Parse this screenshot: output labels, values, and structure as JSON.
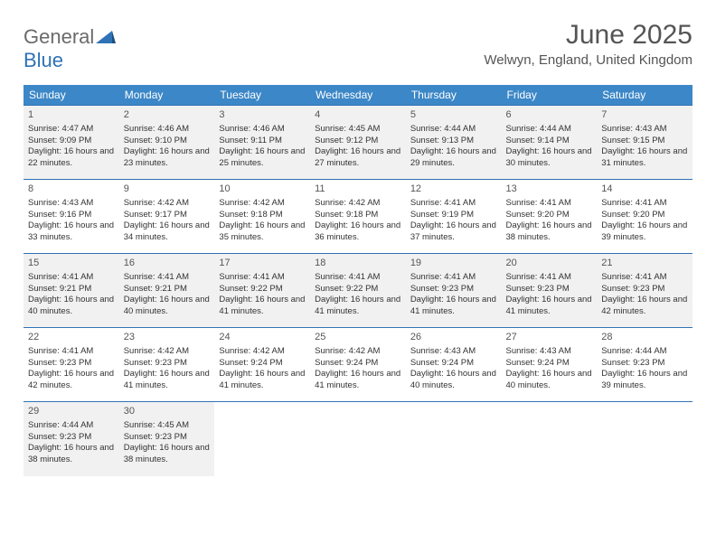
{
  "brand": {
    "part1": "General",
    "part2": "Blue"
  },
  "title": "June 2025",
  "location": "Welwyn, England, United Kingdom",
  "colors": {
    "header_bg": "#3c87c7",
    "header_text": "#ffffff",
    "border": "#2f72b6",
    "alt_row": "#f1f1f1",
    "brand_gray": "#6a6a6a",
    "brand_blue": "#2f72b6"
  },
  "weekdays": [
    "Sunday",
    "Monday",
    "Tuesday",
    "Wednesday",
    "Thursday",
    "Friday",
    "Saturday"
  ],
  "days": [
    {
      "n": 1,
      "sr": "4:47 AM",
      "ss": "9:09 PM",
      "dl": "16 hours and 22 minutes."
    },
    {
      "n": 2,
      "sr": "4:46 AM",
      "ss": "9:10 PM",
      "dl": "16 hours and 23 minutes."
    },
    {
      "n": 3,
      "sr": "4:46 AM",
      "ss": "9:11 PM",
      "dl": "16 hours and 25 minutes."
    },
    {
      "n": 4,
      "sr": "4:45 AM",
      "ss": "9:12 PM",
      "dl": "16 hours and 27 minutes."
    },
    {
      "n": 5,
      "sr": "4:44 AM",
      "ss": "9:13 PM",
      "dl": "16 hours and 29 minutes."
    },
    {
      "n": 6,
      "sr": "4:44 AM",
      "ss": "9:14 PM",
      "dl": "16 hours and 30 minutes."
    },
    {
      "n": 7,
      "sr": "4:43 AM",
      "ss": "9:15 PM",
      "dl": "16 hours and 31 minutes."
    },
    {
      "n": 8,
      "sr": "4:43 AM",
      "ss": "9:16 PM",
      "dl": "16 hours and 33 minutes."
    },
    {
      "n": 9,
      "sr": "4:42 AM",
      "ss": "9:17 PM",
      "dl": "16 hours and 34 minutes."
    },
    {
      "n": 10,
      "sr": "4:42 AM",
      "ss": "9:18 PM",
      "dl": "16 hours and 35 minutes."
    },
    {
      "n": 11,
      "sr": "4:42 AM",
      "ss": "9:18 PM",
      "dl": "16 hours and 36 minutes."
    },
    {
      "n": 12,
      "sr": "4:41 AM",
      "ss": "9:19 PM",
      "dl": "16 hours and 37 minutes."
    },
    {
      "n": 13,
      "sr": "4:41 AM",
      "ss": "9:20 PM",
      "dl": "16 hours and 38 minutes."
    },
    {
      "n": 14,
      "sr": "4:41 AM",
      "ss": "9:20 PM",
      "dl": "16 hours and 39 minutes."
    },
    {
      "n": 15,
      "sr": "4:41 AM",
      "ss": "9:21 PM",
      "dl": "16 hours and 40 minutes."
    },
    {
      "n": 16,
      "sr": "4:41 AM",
      "ss": "9:21 PM",
      "dl": "16 hours and 40 minutes."
    },
    {
      "n": 17,
      "sr": "4:41 AM",
      "ss": "9:22 PM",
      "dl": "16 hours and 41 minutes."
    },
    {
      "n": 18,
      "sr": "4:41 AM",
      "ss": "9:22 PM",
      "dl": "16 hours and 41 minutes."
    },
    {
      "n": 19,
      "sr": "4:41 AM",
      "ss": "9:23 PM",
      "dl": "16 hours and 41 minutes."
    },
    {
      "n": 20,
      "sr": "4:41 AM",
      "ss": "9:23 PM",
      "dl": "16 hours and 41 minutes."
    },
    {
      "n": 21,
      "sr": "4:41 AM",
      "ss": "9:23 PM",
      "dl": "16 hours and 42 minutes."
    },
    {
      "n": 22,
      "sr": "4:41 AM",
      "ss": "9:23 PM",
      "dl": "16 hours and 42 minutes."
    },
    {
      "n": 23,
      "sr": "4:42 AM",
      "ss": "9:23 PM",
      "dl": "16 hours and 41 minutes."
    },
    {
      "n": 24,
      "sr": "4:42 AM",
      "ss": "9:24 PM",
      "dl": "16 hours and 41 minutes."
    },
    {
      "n": 25,
      "sr": "4:42 AM",
      "ss": "9:24 PM",
      "dl": "16 hours and 41 minutes."
    },
    {
      "n": 26,
      "sr": "4:43 AM",
      "ss": "9:24 PM",
      "dl": "16 hours and 40 minutes."
    },
    {
      "n": 27,
      "sr": "4:43 AM",
      "ss": "9:24 PM",
      "dl": "16 hours and 40 minutes."
    },
    {
      "n": 28,
      "sr": "4:44 AM",
      "ss": "9:23 PM",
      "dl": "16 hours and 39 minutes."
    },
    {
      "n": 29,
      "sr": "4:44 AM",
      "ss": "9:23 PM",
      "dl": "16 hours and 38 minutes."
    },
    {
      "n": 30,
      "sr": "4:45 AM",
      "ss": "9:23 PM",
      "dl": "16 hours and 38 minutes."
    }
  ],
  "labels": {
    "sunrise": "Sunrise:",
    "sunset": "Sunset:",
    "daylight": "Daylight:"
  },
  "layout": {
    "start_weekday": 0,
    "cols": 7
  }
}
